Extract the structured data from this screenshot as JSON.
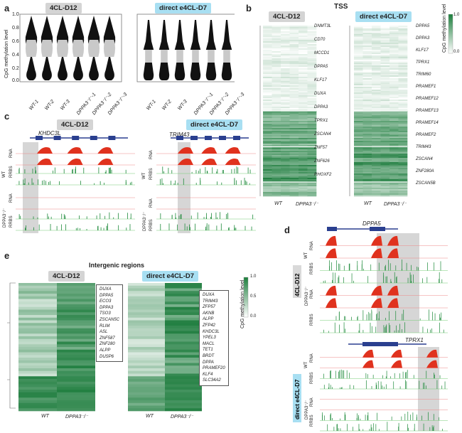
{
  "panels": {
    "a": "a",
    "b": "b",
    "c": "c",
    "d": "d",
    "e": "e"
  },
  "conditions": {
    "c12": "4CL-D12",
    "e4cl": "direct e4CL-D7"
  },
  "panel_a": {
    "ylabel": "CpG methylation level",
    "yticks": [
      "1.0",
      "0.8",
      "0.6",
      "0.4",
      "0.2",
      "0.0"
    ],
    "samples": [
      "WT-1",
      "WT-2",
      "WT-3",
      "DPPA3⁻/⁻-1",
      "DPPA3⁻/⁻-2",
      "DPPA3⁻/⁻-3"
    ]
  },
  "panel_b": {
    "title": "TSS",
    "left_genes": [
      "DNMT3L",
      "CD70",
      "MCCD1",
      "DPPA5",
      "KLF17",
      "DUXA",
      "DPPA3",
      "TPRX1",
      "ZSCAN4",
      "ZNF57",
      "ZNF626",
      "RHOXF2"
    ],
    "right_genes": [
      "DPPA5",
      "DPPA3",
      "KLF17",
      "TPRX1",
      "TRIM60",
      "PRAMEF1",
      "PRAMEF12",
      "PRAMEF13",
      "PRAMEF14",
      "PRAMEF2",
      "TRIM43",
      "ZSCAN4",
      "ZNF280A",
      "ZSCAN5B"
    ],
    "xlabels": [
      "WT",
      "DPPA3⁻/⁻"
    ],
    "xlabels_right": [
      "WT",
      "DPPA3⁻/⁻"
    ],
    "legend_label": "CpG methylation level",
    "legend_ticks": [
      "1.0",
      "0.0"
    ]
  },
  "panel_c": {
    "left_gene": "KHDC3L",
    "right_gene": "TRIM43",
    "group_wt": "WT",
    "group_ko": "DPPA3⁻/⁻",
    "track_rna": "RNA",
    "track_rrbs": "RRBS"
  },
  "panel_d": {
    "gene_top": "DPPA5",
    "gene_bottom": "TPRX1",
    "group_wt": "WT",
    "group_ko": "DPPA3⁻/⁻",
    "track_rna": "RNA",
    "track_rrbs": "RRBS"
  },
  "panel_e": {
    "title": "Intergenic regions",
    "left_list": [
      "DUXA",
      "DPPA5",
      "ECO3",
      "DPPA3",
      "TSO3",
      "ZSCAN5C",
      "RLIM",
      "ASL",
      "ZNF587",
      "ZNF280",
      "ALPP",
      "DUSP6"
    ],
    "right_list": [
      "DUXA",
      "TRIM43",
      "ZFP57",
      "AKNB",
      "ALPP",
      "ZFP42",
      "KHDC3L",
      "YPEL3",
      "MACL",
      "TET1",
      "BRDT",
      "DPPA",
      "PRAMEF20",
      "KLF4",
      "SLC34A2"
    ],
    "xlabels": [
      "WT",
      "DPPA3⁻/⁻"
    ],
    "legend_label": "CpG methylation level",
    "legend_ticks": [
      "0.0",
      "0.5",
      "1.0"
    ]
  }
}
